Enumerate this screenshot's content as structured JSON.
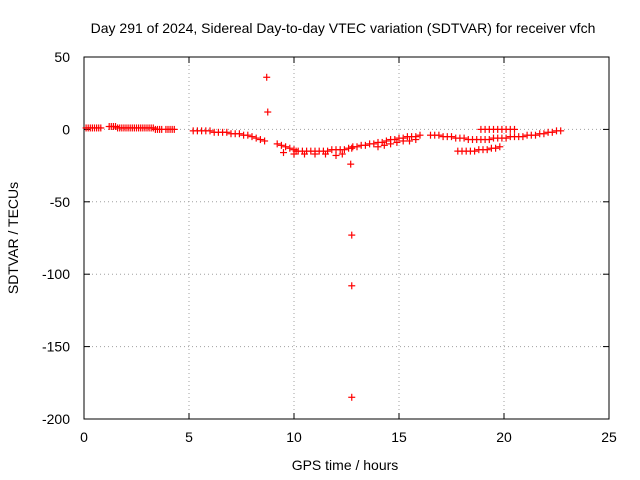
{
  "chart_data": {
    "type": "scatter",
    "title": "Day 291 of 2024, Sidereal Day-to-day VTEC variation (SDTVAR) for receiver vfch",
    "xlabel": "GPS time / hours",
    "ylabel": "SDTVAR / TECUs",
    "xlim": [
      0,
      25
    ],
    "ylim": [
      -200,
      50
    ],
    "xticks": [
      0,
      5,
      10,
      15,
      20,
      25
    ],
    "yticks": [
      -200,
      -150,
      -100,
      -50,
      0,
      50
    ],
    "grid": true,
    "marker": "+",
    "color": "#ff0000",
    "series": [
      {
        "name": "SDTVAR",
        "x": [
          0.1,
          0.2,
          0.3,
          0.4,
          0.5,
          0.6,
          0.7,
          0.8,
          1.2,
          1.3,
          1.4,
          1.5,
          1.6,
          1.7,
          1.8,
          1.9,
          2.0,
          2.1,
          2.2,
          2.3,
          2.4,
          2.5,
          2.6,
          2.7,
          2.8,
          2.9,
          3.0,
          3.1,
          3.2,
          3.3,
          3.4,
          3.5,
          3.6,
          3.7,
          3.9,
          4.0,
          4.1,
          4.2,
          4.3,
          5.2,
          5.4,
          5.6,
          5.8,
          6.0,
          6.2,
          6.4,
          6.6,
          6.8,
          7.0,
          7.2,
          7.4,
          7.6,
          7.8,
          8.0,
          8.2,
          8.4,
          8.6,
          8.7,
          8.75,
          9.2,
          9.4,
          9.6,
          9.8,
          10.0,
          10.1,
          10.2,
          10.4,
          10.6,
          10.8,
          11.0,
          11.2,
          11.4,
          11.6,
          11.8,
          12.0,
          12.2,
          12.4,
          12.6,
          12.7,
          12.75,
          12.75,
          12.75,
          12.75,
          12.8,
          13.0,
          13.2,
          13.4,
          13.6,
          13.8,
          14.0,
          14.2,
          14.4,
          14.6,
          14.8,
          15.0,
          15.2,
          15.4,
          15.6,
          15.8,
          16.0,
          16.5,
          16.7,
          16.9,
          17.1,
          17.3,
          17.5,
          17.7,
          17.9,
          18.1,
          18.3,
          18.5,
          18.7,
          18.9,
          19.1,
          19.3,
          19.5,
          19.7,
          19.9,
          20.1,
          20.3,
          20.5,
          20.7,
          20.9,
          21.1,
          21.3,
          21.5,
          21.7,
          21.9,
          22.1,
          22.3,
          22.5,
          22.7,
          17.8,
          18.0,
          18.2,
          18.4,
          18.6,
          18.8,
          19.0,
          19.2,
          19.4,
          19.6,
          19.8,
          18.9,
          19.1,
          19.3,
          19.5,
          19.7,
          19.9,
          20.1,
          20.3,
          20.5,
          9.5,
          10.0,
          10.5,
          11.0,
          11.5,
          12.0,
          12.3,
          14.0,
          14.3,
          14.6,
          14.9,
          15.2,
          15.5,
          15.8
        ],
        "y": [
          1,
          1,
          1,
          1,
          1,
          1,
          1,
          1,
          2,
          2,
          2,
          2,
          1,
          1,
          1,
          1,
          1,
          1,
          1,
          1,
          1,
          1,
          1,
          1,
          1,
          1,
          1,
          1,
          1,
          1,
          0,
          0,
          0,
          0,
          0,
          0,
          0,
          0,
          0,
          -1,
          -1,
          -1,
          -1,
          -1,
          -2,
          -2,
          -2,
          -2,
          -3,
          -3,
          -3,
          -4,
          -4,
          -5,
          -6,
          -7,
          -8,
          36,
          12,
          -10,
          -11,
          -12,
          -13,
          -14,
          -15,
          -15,
          -15,
          -15,
          -15,
          -15,
          -15,
          -15,
          -15,
          -14,
          -14,
          -14,
          -14,
          -13,
          -24,
          -73,
          -108,
          -185,
          -13,
          -12,
          -12,
          -11,
          -11,
          -10,
          -10,
          -9,
          -9,
          -8,
          -7,
          -7,
          -6,
          -6,
          -5,
          -5,
          -5,
          -4,
          -4,
          -4,
          -4,
          -5,
          -5,
          -5,
          -6,
          -6,
          -6,
          -7,
          -7,
          -7,
          -7,
          -7,
          -7,
          -6,
          -6,
          -6,
          -6,
          -5,
          -5,
          -5,
          -5,
          -4,
          -4,
          -4,
          -3,
          -3,
          -2,
          -2,
          -1,
          -1,
          -15,
          -15,
          -15,
          -15,
          -15,
          -14,
          -14,
          -14,
          -13,
          -13,
          -12,
          0,
          0,
          0,
          0,
          0,
          0,
          0,
          0,
          0,
          -16,
          -17,
          -17,
          -17,
          -17,
          -18,
          -17,
          -12,
          -11,
          -10,
          -9,
          -8,
          -8,
          -7
        ]
      }
    ]
  }
}
